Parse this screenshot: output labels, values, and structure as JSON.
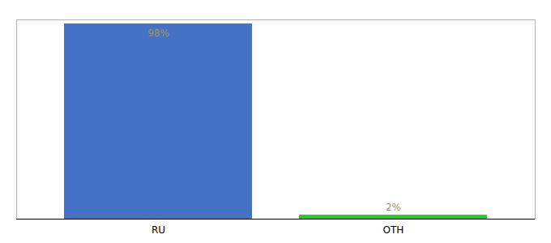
{
  "chart_data": {
    "type": "bar",
    "categories": [
      "RU",
      "OTH"
    ],
    "values": [
      98,
      2
    ],
    "colors": [
      "#4472c4",
      "#22cc22"
    ],
    "ylim": [
      0,
      100
    ],
    "data_labels": true,
    "value_labels": [
      "98%",
      "2%"
    ],
    "tick_labels": "x",
    "grid": false
  }
}
